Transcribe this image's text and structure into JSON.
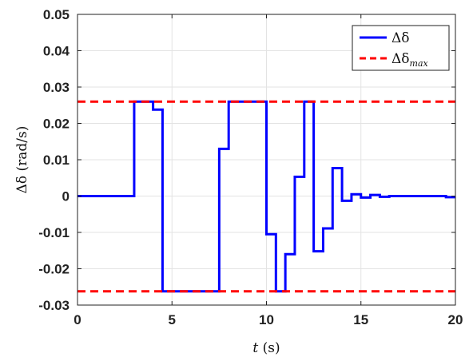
{
  "chart_data": {
    "type": "line",
    "xlabel": {
      "var": "t",
      "unit": " (s)"
    },
    "ylabel": {
      "var": "Δδ",
      "unit": " (rad/s)"
    },
    "xlim": [
      0,
      20
    ],
    "ylim": [
      -0.03,
      0.05
    ],
    "x_ticks": [
      0,
      5,
      10,
      15,
      20
    ],
    "x_tick_labels": [
      "0",
      "5",
      "10",
      "15",
      "20"
    ],
    "y_ticks": [
      -0.03,
      -0.02,
      -0.01,
      0,
      0.01,
      0.02,
      0.03,
      0.04,
      0.05
    ],
    "y_tick_labels": [
      "-0.03",
      "-0.02",
      "-0.01",
      "0",
      "0.01",
      "0.02",
      "0.03",
      "0.04",
      "0.05"
    ],
    "grid": true,
    "legend_position": "top-right",
    "series": [
      {
        "name": "Δδ",
        "style": "solid",
        "color": "#0000ff",
        "x": [
          0,
          3,
          3,
          4,
          4,
          4.5,
          4.5,
          7.5,
          7.5,
          8,
          8,
          10,
          10,
          10.5,
          10.5,
          11,
          11,
          11.5,
          11.5,
          12,
          12,
          12.5,
          12.5,
          13,
          13,
          13.5,
          13.5,
          14,
          14,
          14.5,
          14.5,
          15,
          15,
          15.5,
          15.5,
          16,
          16,
          16.5,
          16.5,
          19.5,
          19.5,
          20
        ],
        "y": [
          0,
          0,
          0.026,
          0.026,
          0.0238,
          0.0238,
          -0.0262,
          -0.0262,
          0.013,
          0.013,
          0.026,
          0.026,
          -0.0105,
          -0.0105,
          -0.0262,
          -0.0262,
          -0.016,
          -0.016,
          0.0053,
          0.0053,
          0.026,
          0.026,
          -0.0152,
          -0.0152,
          -0.0089,
          -0.0089,
          0.0077,
          0.0077,
          -0.0013,
          -0.0013,
          0.0005,
          0.0005,
          -0.0004,
          -0.0004,
          0.0003,
          0.0003,
          -0.0002,
          -0.0002,
          0,
          0,
          -0.0003,
          -0.0003
        ]
      },
      {
        "name": "Δδ",
        "name_subscript": "max",
        "style": "dashed",
        "color": "#ff0000",
        "x": [
          0,
          20
        ],
        "y": [
          0.026,
          0.026
        ]
      },
      {
        "name": "",
        "style": "dashed",
        "color": "#ff0000",
        "x": [
          0,
          20
        ],
        "y": [
          -0.0262,
          -0.0262
        ]
      }
    ]
  }
}
